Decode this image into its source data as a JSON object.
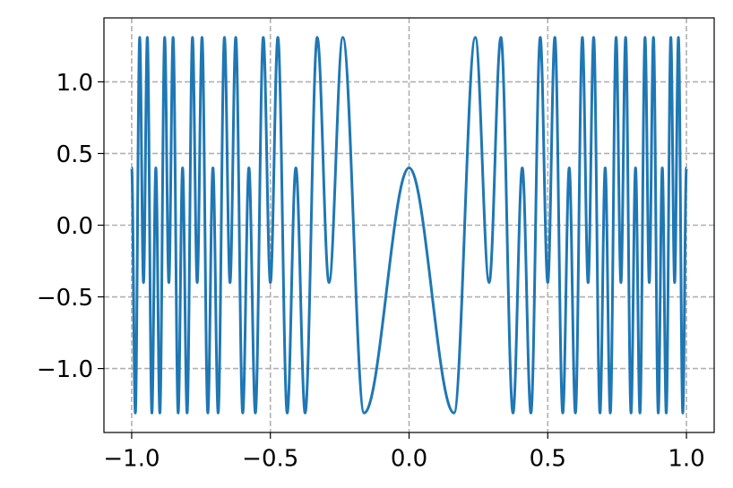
{
  "chart_data": {
    "type": "line",
    "x": [
      -1,
      -0.9868,
      -0.9711,
      -0.9574,
      -0.9436,
      -0.9272,
      -0.9129,
      -0.8984,
      -0.8811,
      -0.866,
      -0.8507,
      -0.8324,
      -0.8165,
      -0.8002,
      -0.7808,
      -0.7638,
      -0.7464,
      -0.7255,
      -0.7071,
      -0.6883,
      -0.6656,
      -0.6455,
      -0.6248,
      -0.5997,
      -0.5774,
      -0.5541,
      -0.5256,
      -0.5,
      -0.473,
      -0.4393,
      -0.4082,
      -0.3747,
      -0.3311,
      -0.2887,
      -0.2388,
      -0.1621,
      0,
      0.1621,
      0.2388,
      0.2887,
      0.3311,
      0.3747,
      0.4082,
      0.4393,
      0.473,
      0.5,
      0.5256,
      0.5541,
      0.5774,
      0.5997,
      0.6248,
      0.6455,
      0.6656,
      0.6883,
      0.7071,
      0.7255,
      0.7464,
      0.7638,
      0.7808,
      0.8002,
      0.8165,
      0.8324,
      0.8507,
      0.866,
      0.8811,
      0.8984,
      0.9129,
      0.9272,
      0.9436,
      0.9574,
      0.9711,
      0.9868,
      1
    ],
    "series": [
      {
        "color": "#1f77b4",
        "values": [
          0.4,
          -1.31,
          1.31,
          -0.4,
          1.31,
          -1.31,
          0.4,
          -1.31,
          1.31,
          -0.4,
          1.31,
          -1.31,
          0.4,
          -1.31,
          1.31,
          -0.4,
          1.31,
          -1.31,
          0.4,
          -1.31,
          1.31,
          -0.4,
          1.31,
          -1.31,
          0.4,
          -1.31,
          1.31,
          -0.4,
          1.31,
          -1.31,
          0.4,
          -1.31,
          1.31,
          -0.4,
          1.31,
          -1.31,
          0.4,
          -1.31,
          1.31,
          -0.4,
          1.31,
          -1.31,
          0.4,
          -1.31,
          1.31,
          -0.4,
          1.31,
          -1.31,
          0.4,
          -1.31,
          1.31,
          -0.4,
          1.31,
          -1.31,
          0.4,
          -1.31,
          1.31,
          -0.4,
          1.31,
          -1.31,
          0.4,
          -1.31,
          1.31,
          -0.4,
          1.31,
          -1.31,
          0.4,
          -1.31,
          1.31,
          -0.4,
          1.31,
          -1.31,
          0.4
        ]
      }
    ],
    "xlim": [
      -1.1,
      1.1
    ],
    "ylim": [
      -1.446,
      1.446
    ],
    "xticks": [
      {
        "value": -1.0,
        "label": "−1.0"
      },
      {
        "value": -0.5,
        "label": "−0.5"
      },
      {
        "value": 0.0,
        "label": "0.0"
      },
      {
        "value": 0.5,
        "label": "0.5"
      },
      {
        "value": 1.0,
        "label": "1.0"
      }
    ],
    "yticks": [
      {
        "value": -1.0,
        "label": "−1.0"
      },
      {
        "value": -0.5,
        "label": "−0.5"
      },
      {
        "value": 0.0,
        "label": "0.0"
      },
      {
        "value": 0.5,
        "label": "0.5"
      },
      {
        "value": 1.0,
        "label": "1.0"
      }
    ],
    "grid": true
  }
}
